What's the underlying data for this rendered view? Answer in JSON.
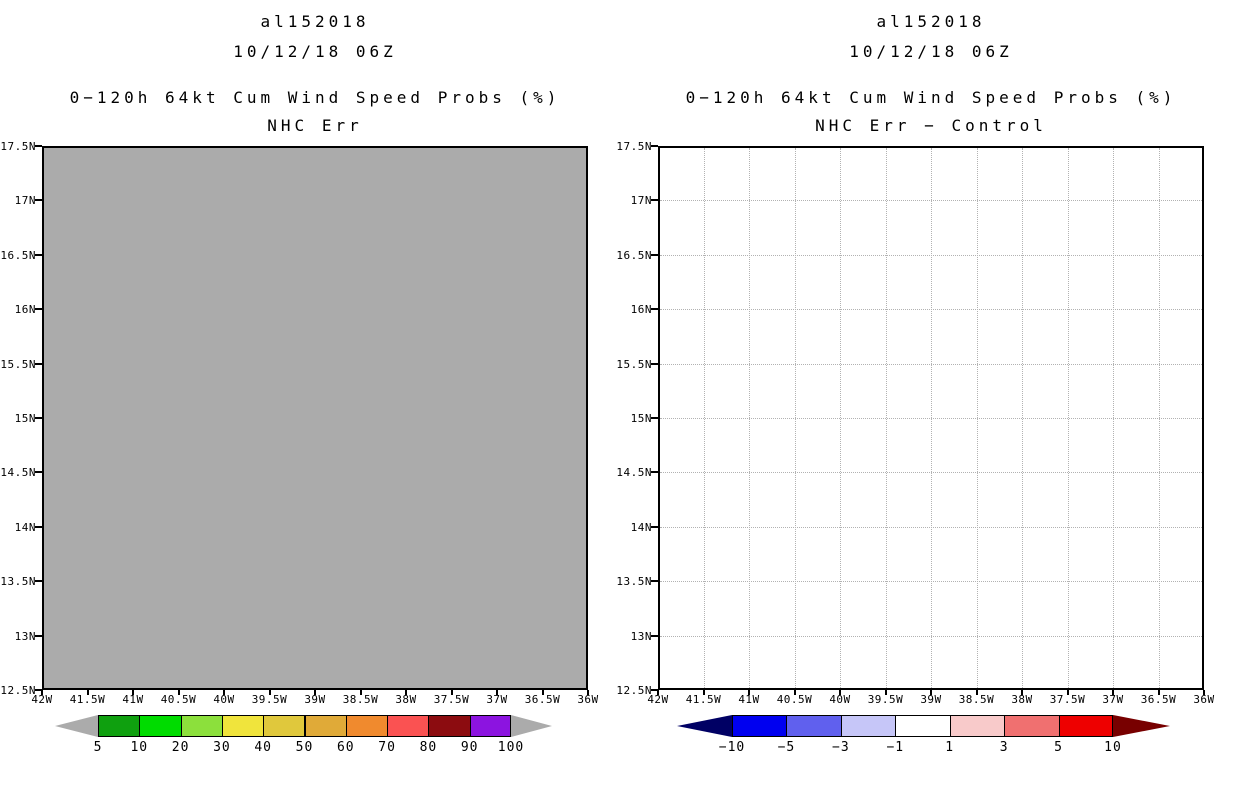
{
  "page": {
    "background": "#ffffff"
  },
  "panels": [
    {
      "name": "left-panel",
      "header": {
        "storm_id": "al152018",
        "run_time": "10/12/18 06Z"
      },
      "title": "0−120h 64kt Cum Wind Speed Probs (%)",
      "subtitle": "NHC Err",
      "map": {
        "fill": "#ababab",
        "grid": false,
        "grid_color": "#b2b2b2",
        "border_color": "#000000"
      },
      "lat_labels": [
        "17.5N",
        "17N",
        "16.5N",
        "16N",
        "15.5N",
        "15N",
        "14.5N",
        "14N",
        "13.5N",
        "13N",
        "12.5N"
      ],
      "lon_labels": [
        "42W",
        "41.5W",
        "41W",
        "40.5W",
        "40W",
        "39.5W",
        "39W",
        "38.5W",
        "38W",
        "37.5W",
        "37W",
        "36.5W",
        "36W"
      ],
      "colorbar": {
        "labels": [
          "5",
          "10",
          "20",
          "30",
          "40",
          "50",
          "60",
          "70",
          "80",
          "90",
          "100"
        ],
        "colors": [
          "#0fa00f",
          "#00dc00",
          "#8ce03c",
          "#f0e43c",
          "#e0c83c",
          "#e0aa38",
          "#f08a2e",
          "#fa5252",
          "#8c0c10",
          "#8c14e0"
        ],
        "left_arrow": "#ababab",
        "right_arrow": "#ababab"
      }
    },
    {
      "name": "right-panel",
      "header": {
        "storm_id": "al152018",
        "run_time": "10/12/18 06Z"
      },
      "title": "0−120h 64kt Cum Wind Speed Probs (%)",
      "subtitle": "NHC Err − Control",
      "map": {
        "fill": "#ffffff",
        "grid": true,
        "grid_color": "#b2b2b2",
        "border_color": "#000000"
      },
      "lat_labels": [
        "17.5N",
        "17N",
        "16.5N",
        "16N",
        "15.5N",
        "15N",
        "14.5N",
        "14N",
        "13.5N",
        "13N",
        "12.5N"
      ],
      "lon_labels": [
        "42W",
        "41.5W",
        "41W",
        "40.5W",
        "40W",
        "39.5W",
        "39W",
        "38.5W",
        "38W",
        "37.5W",
        "37W",
        "36.5W",
        "36W"
      ],
      "colorbar": {
        "labels": [
          "−10",
          "−5",
          "−3",
          "−1",
          "1",
          "3",
          "5",
          "10"
        ],
        "colors": [
          "#0000f0",
          "#6060ee",
          "#c6c6f8",
          "#ffffff",
          "#f8caca",
          "#f07070",
          "#ee0000"
        ],
        "left_arrow": "#000064",
        "right_arrow": "#780000"
      }
    }
  ],
  "chart_data": [
    {
      "type": "heatmap",
      "title": "0−120h 64kt Cum Wind Speed Probs (%)",
      "subtitle": "NHC Err",
      "annotations": [
        "al152018",
        "10/12/18 06Z"
      ],
      "x_ticks": [
        "42W",
        "41.5W",
        "41W",
        "40.5W",
        "40W",
        "39.5W",
        "39W",
        "38.5W",
        "38W",
        "37.5W",
        "37W",
        "36.5W",
        "36W"
      ],
      "y_ticks": [
        "17.5N",
        "17N",
        "16.5N",
        "16N",
        "15.5N",
        "15N",
        "14.5N",
        "14N",
        "13.5N",
        "13N",
        "12.5N"
      ],
      "x_range_deg_west": [
        42,
        36
      ],
      "y_range_deg_north": [
        12.5,
        17.5
      ],
      "field": "uniform gray below-threshold fill across entire domain; no probability contours plotted",
      "colorbar_levels": [
        5,
        10,
        20,
        30,
        40,
        50,
        60,
        70,
        80,
        90,
        100
      ],
      "grid": false,
      "legend_position": "bottom"
    },
    {
      "type": "heatmap",
      "title": "0−120h 64kt Cum Wind Speed Probs (%)",
      "subtitle": "NHC Err − Control",
      "annotations": [
        "al152018",
        "10/12/18 06Z"
      ],
      "x_ticks": [
        "42W",
        "41.5W",
        "41W",
        "40.5W",
        "40W",
        "39.5W",
        "39W",
        "38.5W",
        "38W",
        "37.5W",
        "37W",
        "36.5W",
        "36W"
      ],
      "y_ticks": [
        "17.5N",
        "17N",
        "16.5N",
        "16N",
        "15.5N",
        "15N",
        "14.5N",
        "14N",
        "13.5N",
        "13N",
        "12.5N"
      ],
      "x_range_deg_west": [
        42,
        36
      ],
      "y_range_deg_north": [
        12.5,
        17.5
      ],
      "field": "empty white field with dotted 0.5-degree graticule; all difference values within the -1 to 1 white band",
      "colorbar_levels": [
        -10,
        -5,
        -3,
        -1,
        1,
        3,
        5,
        10
      ],
      "grid": true,
      "legend_position": "bottom"
    }
  ]
}
